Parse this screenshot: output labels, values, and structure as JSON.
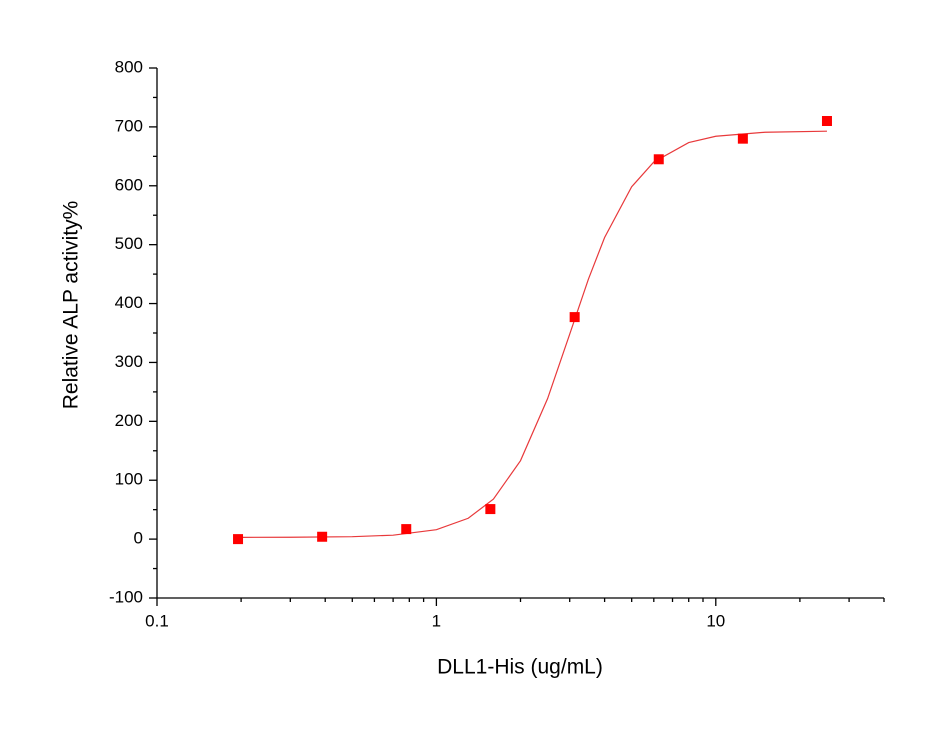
{
  "chart_data": {
    "type": "scatter",
    "x_label": "DLL1-His (ug/mL)",
    "y_label": "Relative ALP activity%",
    "x_scale": "log",
    "xlim": [
      0.1,
      40
    ],
    "xticks": [
      0.1,
      1,
      10
    ],
    "ylim": [
      -100,
      800
    ],
    "yticks": [
      -100,
      0,
      100,
      200,
      300,
      400,
      500,
      600,
      700,
      800
    ],
    "grid": false,
    "series": [
      {
        "color": "#ff0000",
        "x": [
          0.195,
          0.39,
          0.78,
          1.56,
          3.125,
          6.25,
          12.5,
          25
        ],
        "values": [
          0,
          4,
          17,
          51,
          377,
          645,
          680,
          710
        ]
      }
    ],
    "curve": {
      "color": "#e8393b",
      "x": [
        0.2,
        0.3,
        0.5,
        0.7,
        1,
        1.3,
        1.6,
        2,
        2.5,
        3,
        3.5,
        4,
        5,
        6,
        8,
        10,
        15,
        25
      ],
      "values": [
        3,
        3.2,
        4.1,
        6.7,
        16,
        35.4,
        68,
        133.2,
        238.5,
        348,
        441.4,
        512.2,
        598.3,
        640.4,
        673.4,
        684.1,
        690.9,
        692.7
      ]
    }
  }
}
